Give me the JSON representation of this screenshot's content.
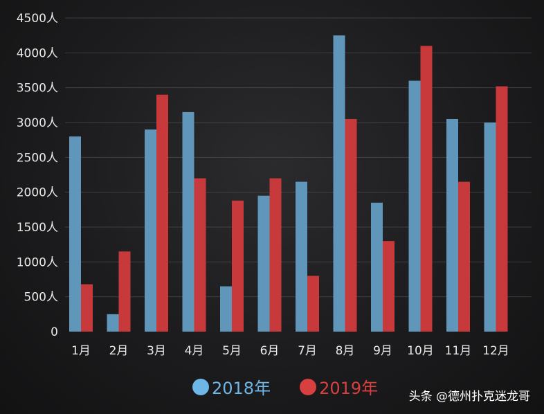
{
  "chart_data": {
    "type": "bar",
    "categories": [
      "1月",
      "2月",
      "3月",
      "4月",
      "5月",
      "6月",
      "7月",
      "8月",
      "9月",
      "10月",
      "11月",
      "12月"
    ],
    "series": [
      {
        "name": "2018年",
        "color": "#5f96ba",
        "values": [
          2800,
          250,
          2900,
          3150,
          650,
          1950,
          2150,
          4250,
          1850,
          3600,
          3050,
          3000
        ]
      },
      {
        "name": "2019年",
        "color": "#c8393c",
        "values": [
          680,
          1150,
          3400,
          2200,
          1880,
          2200,
          800,
          3050,
          1300,
          4100,
          2150,
          3520
        ]
      }
    ],
    "yticks": [
      "0",
      "500人",
      "1000人",
      "1500人",
      "2000人",
      "2500人",
      "3000人",
      "3500人",
      "4000人",
      "4500人"
    ],
    "ylim": [
      0,
      4500
    ],
    "grid": true,
    "legend_position": "bottom"
  },
  "legend": {
    "items": [
      {
        "label": "2018年",
        "color": "#6db6e6"
      },
      {
        "label": "2019年",
        "color": "#d8403f"
      }
    ]
  },
  "watermark": {
    "text": "头条 @德州扑克迷龙哥"
  }
}
